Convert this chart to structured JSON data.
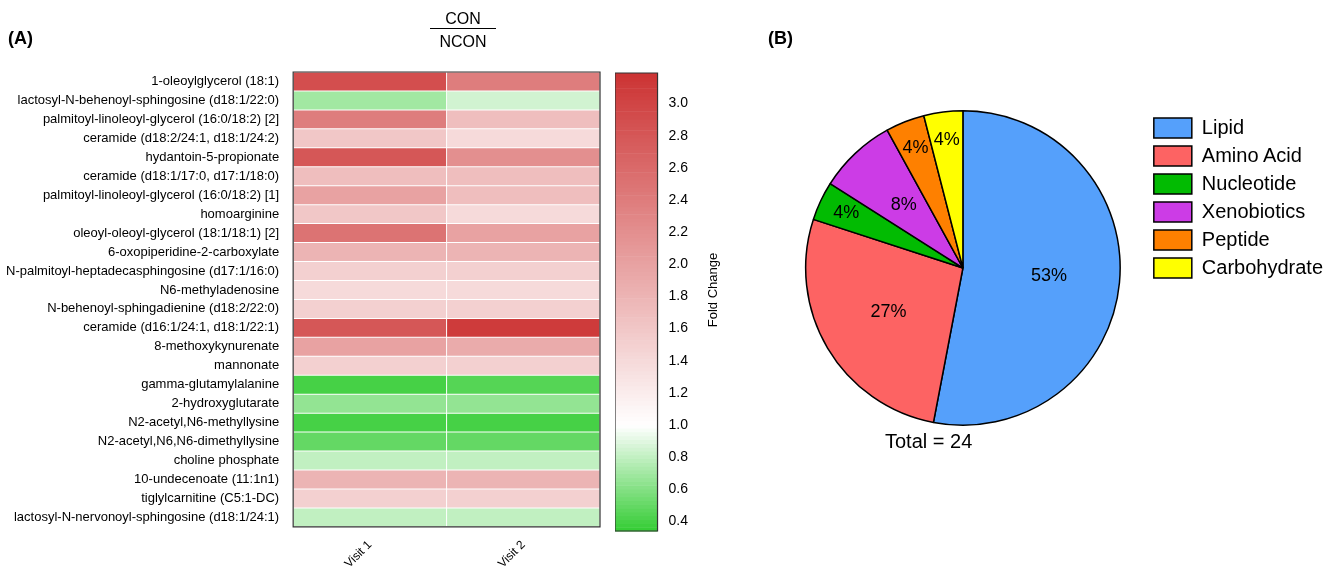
{
  "chart_data": [
    {
      "type": "heatmap",
      "title": "CON",
      "subtitle": "NCON",
      "clabel": "Fold Change",
      "annotations": [
        "(A)"
      ],
      "categories": [
        "Visit 1",
        "Visit 2"
      ],
      "y_categories": [
        "1-oleoylglycerol (18:1)",
        "lactosyl-N-behenoyl-sphingosine (d18:1/22:0)",
        "palmitoyl-linoleoyl-glycerol (16:0/18:2) [2]",
        "ceramide (d18:2/24:1, d18:1/24:2)",
        "hydantoin-5-propionate",
        "ceramide (d18:1/17:0, d17:1/18:0)",
        "palmitoyl-linoleoyl-glycerol (16:0/18:2) [1]",
        "homoarginine",
        "oleoyl-oleoyl-glycerol (18:1/18:1) [2]",
        "6-oxopiperidine-2-carboxylate",
        "N-palmitoyl-heptadecasphingosine (d17:1/16:0)",
        "N6-methyladenosine",
        "N-behenoyl-sphingadienine (d18:2/22:0)",
        "ceramide (d16:1/24:1, d18:1/22:1)",
        "8-methoxykynurenate",
        "mannonate",
        "gamma-glutamylalanine",
        "2-hydroxyglutarate",
        "N2-acetyl,N6-methyllysine",
        "N2-acetyl,N6,N6-dimethyllysine",
        "choline phosphate",
        "10-undecenoate (11:1n1)",
        "tiglylcarnitine (C5:1-DC)",
        "lactosyl-N-nervonoyl-sphingosine (d18:1/24:1)"
      ],
      "cells": [
        [
          2.9,
          2.4
        ],
        [
          0.7,
          0.85
        ],
        [
          2.4,
          1.7
        ],
        [
          1.6,
          1.4
        ],
        [
          2.8,
          2.2
        ],
        [
          1.7,
          1.7
        ],
        [
          2.0,
          1.7
        ],
        [
          1.6,
          1.4
        ],
        [
          2.5,
          2.0
        ],
        [
          1.8,
          1.8
        ],
        [
          1.5,
          1.5
        ],
        [
          1.4,
          1.4
        ],
        [
          1.5,
          1.5
        ],
        [
          2.8,
          3.1
        ],
        [
          2.0,
          1.9
        ],
        [
          1.5,
          1.5
        ],
        [
          0.4,
          0.45
        ],
        [
          0.65,
          0.65
        ],
        [
          0.4,
          0.4
        ],
        [
          0.5,
          0.5
        ],
        [
          0.8,
          0.8
        ],
        [
          1.8,
          1.8
        ],
        [
          1.5,
          1.5
        ],
        [
          0.8,
          0.8
        ]
      ],
      "clim": [
        0.34,
        3.19
      ],
      "cticks": [
        0.4,
        0.6,
        0.8,
        {
          "value": 1,
          "label": "1.0"
        },
        1.2,
        1.4,
        1.6,
        1.8,
        {
          "value": 2,
          "label": "2.0"
        },
        2.2,
        2.4,
        2.6,
        2.8,
        {
          "value": 3,
          "label": "3.0"
        }
      ]
    },
    {
      "type": "pie",
      "annotations": [
        "(B)",
        "Total = 24"
      ],
      "legend": "right",
      "categories": [
        "Lipid",
        "Amino Acid",
        "Nucleotide",
        "Xenobiotics",
        "Peptide",
        "Carbohydrate"
      ],
      "values": [
        53,
        27,
        4,
        8,
        4,
        4
      ],
      "value_labels": [
        "53%",
        "27%",
        "4%",
        "8%",
        "4%",
        "4%"
      ],
      "colors": [
        "#55a0fb",
        "#fd6363",
        "#02bb02",
        "#cc3ce6",
        "#fe8000",
        "#ffff00"
      ]
    }
  ]
}
